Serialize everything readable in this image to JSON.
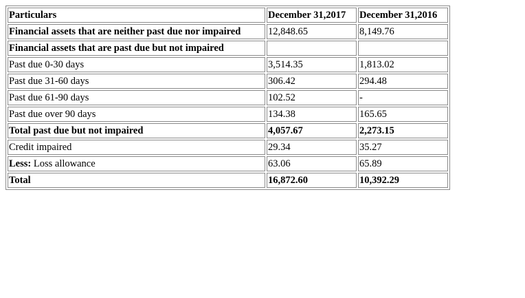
{
  "table": {
    "header": {
      "col0": "Particulars",
      "col1": "December 31,2017",
      "col2": "December 31,2016"
    },
    "rows": [
      {
        "label": "Financial assets that are neither past due nor impaired",
        "v2017": "12,848.65",
        "v2016": "8,149.76"
      },
      {
        "label": "Financial assets that are past due but not impaired",
        "v2017": "",
        "v2016": ""
      },
      {
        "label": "Past due 0-30 days",
        "v2017": "3,514.35",
        "v2016": "1,813.02"
      },
      {
        "label": "Past due 31-60 days",
        "v2017": "306.42",
        "v2016": "294.48"
      },
      {
        "label": "Past due 61-90 days",
        "v2017": "102.52",
        "v2016": "-"
      },
      {
        "label": "Past due over 90 days",
        "v2017": "134.38",
        "v2016": "165.65"
      },
      {
        "label": "Total past due but not impaired",
        "v2017": "4,057.67",
        "v2016": "2,273.15"
      },
      {
        "label": "Credit impaired",
        "v2017": "29.34",
        "v2016": "35.27"
      },
      {
        "label_bold": "Less:",
        "label_rest": " Loss allowance",
        "v2017": "63.06",
        "v2016": "65.89"
      },
      {
        "label": "Total",
        "v2017": "16,872.60",
        "v2016": "10,392.29"
      }
    ]
  }
}
